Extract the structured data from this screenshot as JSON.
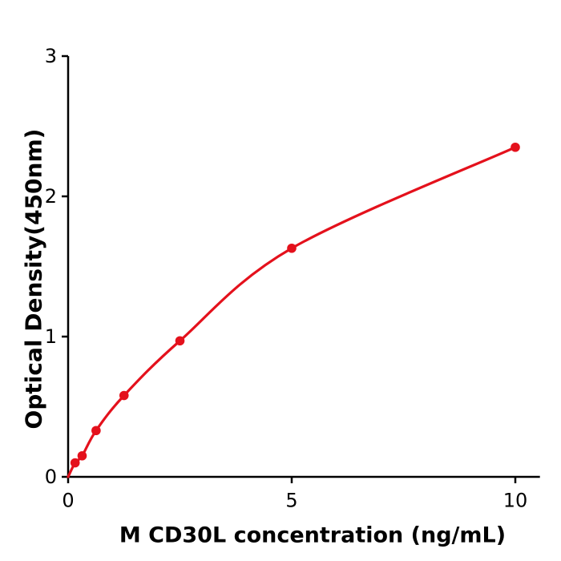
{
  "chart_data": {
    "type": "line",
    "title": "",
    "xlabel": "M  CD30L concentration (ng/mL)",
    "ylabel": "Optical Density(450nm)",
    "x": [
      0.156,
      0.313,
      0.625,
      1.25,
      2.5,
      5,
      10
    ],
    "y": [
      0.1,
      0.15,
      0.33,
      0.58,
      0.97,
      1.63,
      2.35
    ],
    "curve_origin": {
      "x": 0,
      "y": 0
    },
    "xlim": [
      0,
      10.55
    ],
    "ylim": [
      0,
      3
    ],
    "x_ticks": [
      0,
      5,
      10
    ],
    "x_tick_labels": [
      "0",
      "5",
      "10"
    ],
    "y_ticks": [
      0,
      1,
      2,
      3
    ],
    "y_tick_labels": [
      "0",
      "1",
      "2",
      "3"
    ],
    "grid": false,
    "legend": null,
    "colors": {
      "line": "#e4111c",
      "marker": "#e4111c",
      "axis": "#000000",
      "text": "#000000",
      "background": "#ffffff"
    },
    "style": {
      "marker_radius": 5.8,
      "line_width": 3.2,
      "axis_width": 2.5,
      "tick_length": 8,
      "tick_font_size": 24
    }
  }
}
